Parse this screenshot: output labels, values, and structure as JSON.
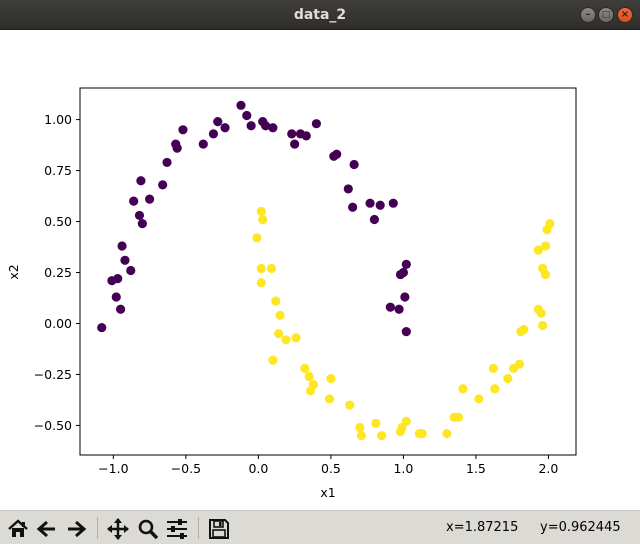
{
  "window": {
    "title": "data_2",
    "controls": [
      "minimize",
      "maximize",
      "close"
    ]
  },
  "toolbar": {
    "buttons": [
      {
        "name": "home",
        "icon": "home-icon"
      },
      {
        "name": "back",
        "icon": "arrow-left-icon"
      },
      {
        "name": "forward",
        "icon": "arrow-right-icon"
      },
      {
        "name": "pan",
        "icon": "move-icon"
      },
      {
        "name": "zoom",
        "icon": "magnifier-icon"
      },
      {
        "name": "configure-subplots",
        "icon": "sliders-icon"
      },
      {
        "name": "save",
        "icon": "floppy-disk-icon"
      }
    ],
    "coord_x": "x=1.87215",
    "coord_y": "y=0.962445"
  },
  "chart_data": {
    "type": "scatter",
    "title": "",
    "xlabel": "x1",
    "ylabel": "x2",
    "xlim": [
      -1.23,
      2.19
    ],
    "ylim": [
      -0.645,
      1.155
    ],
    "xticks": [
      -1.0,
      -0.5,
      0.0,
      0.5,
      1.0,
      1.5,
      2.0
    ],
    "xtick_labels": [
      "−1.0",
      "−0.5",
      "0.0",
      "0.5",
      "1.0",
      "1.5",
      "2.0"
    ],
    "yticks": [
      -0.5,
      -0.25,
      0.0,
      0.25,
      0.5,
      0.75,
      1.0
    ],
    "ytick_labels": [
      "−0.50",
      "−0.25",
      "0.00",
      "0.25",
      "0.50",
      "0.75",
      "1.00"
    ],
    "grid": false,
    "legend": "none",
    "series": [
      {
        "color": "#440154",
        "points": [
          [
            -1.08,
            -0.02
          ],
          [
            -1.01,
            0.21
          ],
          [
            -0.97,
            0.22
          ],
          [
            -0.98,
            0.13
          ],
          [
            -0.95,
            0.07
          ],
          [
            -0.94,
            0.38
          ],
          [
            -0.92,
            0.31
          ],
          [
            -0.88,
            0.26
          ],
          [
            -0.86,
            0.6
          ],
          [
            -0.82,
            0.53
          ],
          [
            -0.8,
            0.49
          ],
          [
            -0.81,
            0.7
          ],
          [
            -0.75,
            0.61
          ],
          [
            -0.66,
            0.68
          ],
          [
            -0.63,
            0.79
          ],
          [
            -0.56,
            0.86
          ],
          [
            -0.57,
            0.88
          ],
          [
            -0.52,
            0.95
          ],
          [
            -0.38,
            0.88
          ],
          [
            -0.31,
            0.93
          ],
          [
            -0.28,
            0.99
          ],
          [
            -0.23,
            0.96
          ],
          [
            -0.12,
            1.07
          ],
          [
            -0.08,
            1.02
          ],
          [
            -0.05,
            0.97
          ],
          [
            0.03,
            0.99
          ],
          [
            0.05,
            0.97
          ],
          [
            0.1,
            0.96
          ],
          [
            0.23,
            0.93
          ],
          [
            0.25,
            0.88
          ],
          [
            0.29,
            0.93
          ],
          [
            0.33,
            0.92
          ],
          [
            0.4,
            0.98
          ],
          [
            0.52,
            0.82
          ],
          [
            0.54,
            0.83
          ],
          [
            0.62,
            0.66
          ],
          [
            0.65,
            0.57
          ],
          [
            0.66,
            0.78
          ],
          [
            0.77,
            0.59
          ],
          [
            0.8,
            0.51
          ],
          [
            0.84,
            0.58
          ],
          [
            0.93,
            0.59
          ],
          [
            0.98,
            0.24
          ],
          [
            1.0,
            0.25
          ],
          [
            1.02,
            0.29
          ],
          [
            0.91,
            0.08
          ],
          [
            0.97,
            0.07
          ],
          [
            1.01,
            0.13
          ],
          [
            1.02,
            -0.04
          ]
        ]
      },
      {
        "color": "#fde725",
        "points": [
          [
            0.02,
            0.55
          ],
          [
            -0.01,
            0.42
          ],
          [
            0.03,
            0.51
          ],
          [
            0.02,
            0.27
          ],
          [
            0.02,
            0.2
          ],
          [
            0.09,
            0.27
          ],
          [
            0.12,
            0.11
          ],
          [
            0.15,
            0.04
          ],
          [
            0.14,
            -0.05
          ],
          [
            0.19,
            -0.08
          ],
          [
            0.26,
            -0.07
          ],
          [
            0.1,
            -0.18
          ],
          [
            0.32,
            -0.22
          ],
          [
            0.35,
            -0.26
          ],
          [
            0.38,
            -0.3
          ],
          [
            0.36,
            -0.33
          ],
          [
            0.5,
            -0.27
          ],
          [
            0.49,
            -0.37
          ],
          [
            0.63,
            -0.4
          ],
          [
            0.7,
            -0.51
          ],
          [
            0.71,
            -0.55
          ],
          [
            0.81,
            -0.49
          ],
          [
            0.85,
            -0.55
          ],
          [
            0.98,
            -0.53
          ],
          [
            0.99,
            -0.51
          ],
          [
            1.02,
            -0.48
          ],
          [
            1.11,
            -0.54
          ],
          [
            1.13,
            -0.54
          ],
          [
            1.3,
            -0.54
          ],
          [
            1.35,
            -0.46
          ],
          [
            1.38,
            -0.46
          ],
          [
            1.41,
            -0.32
          ],
          [
            1.52,
            -0.37
          ],
          [
            1.62,
            -0.22
          ],
          [
            1.63,
            -0.32
          ],
          [
            1.72,
            -0.27
          ],
          [
            1.76,
            -0.22
          ],
          [
            1.8,
            -0.2
          ],
          [
            1.81,
            -0.04
          ],
          [
            1.83,
            -0.03
          ],
          [
            1.93,
            0.07
          ],
          [
            1.95,
            0.05
          ],
          [
            1.96,
            -0.01
          ],
          [
            1.93,
            0.36
          ],
          [
            1.96,
            0.27
          ],
          [
            1.98,
            0.24
          ],
          [
            1.98,
            0.38
          ],
          [
            1.99,
            0.46
          ],
          [
            2.01,
            0.49
          ]
        ]
      }
    ]
  }
}
